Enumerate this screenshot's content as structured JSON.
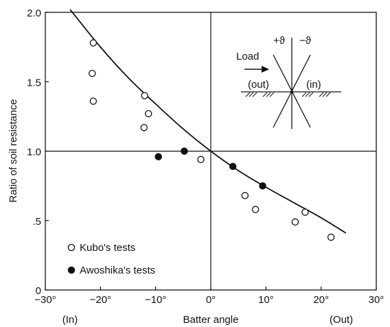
{
  "chart_data": {
    "type": "scatter",
    "title": "",
    "xlabel": "Batter angle",
    "ylabel": "Ratio of soil resistance",
    "xlim": [
      -30,
      30
    ],
    "ylim": [
      0,
      2.0
    ],
    "x_ticks": [
      -30,
      -20,
      -10,
      0,
      10,
      20,
      30
    ],
    "x_tick_labels": [
      "−30°",
      "−20°",
      "−10°",
      "0°",
      "10°",
      "20°",
      "30°"
    ],
    "y_ticks": [
      0,
      0.5,
      1.0,
      1.5,
      2.0
    ],
    "y_tick_labels": [
      "0",
      ".5",
      "1.0",
      "1.5",
      "2.0"
    ],
    "x_end_labels": {
      "left": "(In)",
      "right": "(Out)"
    },
    "grid": false,
    "reference_lines": {
      "x": 0,
      "y": 1.0
    },
    "legend_position": "bottom-left",
    "series": [
      {
        "name": "Kubo's tests",
        "marker": "open-circle",
        "points": [
          [
            -21.3,
            1.78
          ],
          [
            -21.5,
            1.56
          ],
          [
            -21.3,
            1.36
          ],
          [
            -12.0,
            1.4
          ],
          [
            -11.3,
            1.27
          ],
          [
            -12.1,
            1.17
          ],
          [
            -1.8,
            0.94
          ],
          [
            6.2,
            0.68
          ],
          [
            8.1,
            0.58
          ],
          [
            15.3,
            0.49
          ],
          [
            17.1,
            0.56
          ],
          [
            21.8,
            0.38
          ]
        ]
      },
      {
        "name": "Awoshika's tests",
        "marker": "filled-circle",
        "points": [
          [
            -9.5,
            0.96
          ],
          [
            -4.8,
            1.0
          ],
          [
            4.0,
            0.89
          ],
          [
            9.4,
            0.75
          ]
        ]
      },
      {
        "name": "",
        "type": "curve",
        "points": [
          [
            -25.5,
            2.02
          ],
          [
            -20,
            1.75
          ],
          [
            -15,
            1.53
          ],
          [
            -10,
            1.34
          ],
          [
            -5,
            1.16
          ],
          [
            0,
            1.0
          ],
          [
            5,
            0.86
          ],
          [
            10,
            0.74
          ],
          [
            15,
            0.63
          ],
          [
            20,
            0.52
          ],
          [
            24.5,
            0.41
          ]
        ]
      }
    ]
  },
  "inset": {
    "plus_label": "+ϑ",
    "minus_label": "−ϑ",
    "load_label": "Load",
    "out_label": "(out)",
    "in_label": "(in)"
  }
}
